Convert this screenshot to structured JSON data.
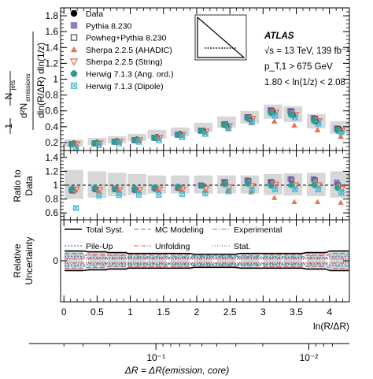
{
  "chart_data": {
    "type": "scatter",
    "xlabel": "ln(R/ΔR)",
    "x": [
      0.15,
      0.5,
      0.8,
      1.1,
      1.4,
      1.75,
      2.1,
      2.45,
      2.8,
      3.15,
      3.45,
      3.8,
      4.15
    ],
    "colors": {
      "data": "#000000",
      "pythia": "#8e7fc4",
      "powheg": "#555555",
      "ahadic": "#ef7052",
      "string": "#e8674f",
      "ang": "#2a9d8f",
      "dipole": "#2fb5d3"
    },
    "atlas": {
      "label": "ATLAS",
      "lines": [
        "√s = 13 TeV, 139 fb⁻¹",
        "p_T,1 > 675 GeV",
        "1.80 < ln(1/z) < 2.08"
      ]
    },
    "panels": {
      "main": {
        "ylabel": "1/N_jets · d²N_emissions / dln(R/ΔR) dln(1/z)",
        "ylim": [
          0.1,
          1.9
        ],
        "yticks": [
          "0.2",
          "0.4",
          "0.6",
          "0.8",
          "1",
          "1.2",
          "1.4",
          "1.6",
          "1.8"
        ],
        "syst_band": [
          [
            0.15,
            0.24
          ],
          [
            0.17,
            0.26
          ],
          [
            0.19,
            0.28
          ],
          [
            0.22,
            0.31
          ],
          [
            0.25,
            0.36
          ],
          [
            0.28,
            0.39
          ],
          [
            0.33,
            0.45
          ],
          [
            0.39,
            0.53
          ],
          [
            0.44,
            0.6
          ],
          [
            0.5,
            0.68
          ],
          [
            0.46,
            0.66
          ],
          [
            0.38,
            0.56
          ],
          [
            0.31,
            0.47
          ]
        ],
        "series": [
          {
            "name": "Data",
            "marker": "circle-filled",
            "values": [
              0.19,
              0.2,
              0.22,
              0.24,
              0.27,
              0.31,
              0.35,
              0.41,
              0.49,
              0.58,
              0.55,
              0.47,
              0.37
            ]
          },
          {
            "name": "Pythia 8.230",
            "marker": "square-filled",
            "values": [
              0.18,
              0.19,
              0.21,
              0.23,
              0.26,
              0.3,
              0.35,
              0.43,
              0.52,
              0.61,
              0.6,
              0.51,
              0.38
            ]
          },
          {
            "name": "Powheg+Pythia 8.230",
            "marker": "square-open",
            "values": [
              0.18,
              0.19,
              0.21,
              0.23,
              0.26,
              0.3,
              0.35,
              0.43,
              0.52,
              0.6,
              0.59,
              0.5,
              0.37
            ]
          },
          {
            "name": "Sherpa 2.2.5 (AHADIC)",
            "marker": "triangle-up-filled",
            "values": [
              0.18,
              0.19,
              0.21,
              0.23,
              0.26,
              0.29,
              0.33,
              0.38,
              0.45,
              0.47,
              0.42,
              0.36,
              0.28
            ]
          },
          {
            "name": "Sherpa 2.2.5 (String)",
            "marker": "triangle-down-open",
            "values": [
              0.18,
              0.19,
              0.21,
              0.23,
              0.26,
              0.3,
              0.34,
              0.41,
              0.5,
              0.58,
              0.55,
              0.47,
              0.35
            ]
          },
          {
            "name": "Herwig 7.1.3 (Ang. ord.)",
            "marker": "plus-filled",
            "values": [
              0.18,
              0.19,
              0.21,
              0.23,
              0.26,
              0.3,
              0.35,
              0.42,
              0.5,
              0.57,
              0.55,
              0.47,
              0.35
            ]
          },
          {
            "name": "Herwig 7.1.3 (Dipole)",
            "marker": "x-circle-open",
            "values": [
              0.13,
              0.17,
              0.19,
              0.21,
              0.23,
              0.27,
              0.31,
              0.38,
              0.46,
              0.54,
              0.52,
              0.44,
              0.33
            ]
          }
        ]
      },
      "ratio": {
        "ylabel": "Ratio to Data",
        "ylim": [
          0.5,
          1.5
        ],
        "yticks": [
          "0.6",
          "0.8",
          "1",
          "1.2",
          "1.4"
        ],
        "syst_band": [
          [
            0.8,
            1.22
          ],
          [
            0.82,
            1.2
          ],
          [
            0.84,
            1.18
          ],
          [
            0.86,
            1.16
          ],
          [
            0.88,
            1.14
          ],
          [
            0.88,
            1.14
          ],
          [
            0.88,
            1.14
          ],
          [
            0.88,
            1.14
          ],
          [
            0.88,
            1.14
          ],
          [
            0.86,
            1.16
          ],
          [
            0.85,
            1.17
          ],
          [
            0.84,
            1.18
          ],
          [
            0.82,
            1.2
          ]
        ],
        "series": [
          {
            "name": "Pythia 8.230",
            "values": [
              0.93,
              0.95,
              0.95,
              0.94,
              0.96,
              0.97,
              1.0,
              1.05,
              1.07,
              1.05,
              1.09,
              1.09,
              1.04
            ]
          },
          {
            "name": "Powheg+Pythia 8.230",
            "values": [
              0.92,
              0.94,
              0.94,
              0.93,
              0.95,
              0.96,
              0.99,
              1.04,
              1.06,
              1.04,
              1.08,
              1.07,
              1.0
            ]
          },
          {
            "name": "Sherpa 2.2.5 (AHADIC)",
            "values": [
              0.93,
              0.92,
              0.93,
              0.92,
              0.93,
              0.93,
              0.92,
              0.92,
              0.9,
              0.82,
              0.76,
              0.76,
              0.75
            ]
          },
          {
            "name": "Sherpa 2.2.5 (String)",
            "values": [
              0.94,
              0.93,
              0.93,
              0.93,
              0.94,
              0.94,
              0.95,
              0.97,
              0.99,
              1.01,
              1.0,
              1.0,
              0.95
            ]
          },
          {
            "name": "Herwig 7.1.3 (Ang. ord.)",
            "values": [
              0.95,
              0.96,
              0.95,
              0.95,
              0.97,
              0.98,
              0.99,
              1.01,
              1.02,
              0.99,
              1.0,
              1.0,
              0.96
            ]
          },
          {
            "name": "Herwig 7.1.3 (Dipole)",
            "values": [
              0.67,
              0.85,
              0.86,
              0.86,
              0.86,
              0.87,
              0.88,
              0.91,
              0.93,
              0.94,
              0.94,
              0.94,
              0.89
            ]
          }
        ]
      },
      "uncertainty": {
        "ylabel": "Relative Uncertainty",
        "ylim": [
          -0.5,
          0.5
        ],
        "yticks": [
          "0"
        ],
        "legend": [
          "Total Syst.",
          "MC Modeling",
          "Experimental",
          "Pile-Up",
          "Unfolding",
          "Stat."
        ],
        "total_syst": [
          0.12,
          0.11,
          0.1,
          0.09,
          0.09,
          0.09,
          0.08,
          0.08,
          0.09,
          0.09,
          0.09,
          0.1,
          0.12
        ],
        "mc_modeling": [
          0.09,
          0.08,
          0.07,
          0.07,
          0.07,
          0.07,
          0.06,
          0.06,
          0.06,
          0.07,
          0.07,
          0.07,
          0.09
        ],
        "experimental": [
          0.07,
          0.06,
          0.06,
          0.05,
          0.05,
          0.05,
          0.05,
          0.05,
          0.05,
          0.05,
          0.05,
          0.06,
          0.07
        ],
        "pileup": [
          0.05,
          0.04,
          0.04,
          0.04,
          0.04,
          0.04,
          0.04,
          0.04,
          0.04,
          0.04,
          0.04,
          0.04,
          0.05
        ],
        "unfolding": [
          0.03,
          0.03,
          0.03,
          0.03,
          0.03,
          0.03,
          0.03,
          0.03,
          0.03,
          0.03,
          0.03,
          0.03,
          0.03
        ],
        "stat": [
          0.02,
          0.02,
          0.02,
          0.02,
          0.02,
          0.02,
          0.02,
          0.02,
          0.02,
          0.02,
          0.02,
          0.02,
          0.02
        ]
      }
    },
    "xticks": [
      "0",
      "0.5",
      "1",
      "1.5",
      "2",
      "2.5",
      "3",
      "3.5",
      "4"
    ],
    "secondary_axis": {
      "label": "ΔR = ΔR(emission, core)",
      "ticks": [
        "10⁻¹",
        "10⁻²"
      ]
    }
  }
}
